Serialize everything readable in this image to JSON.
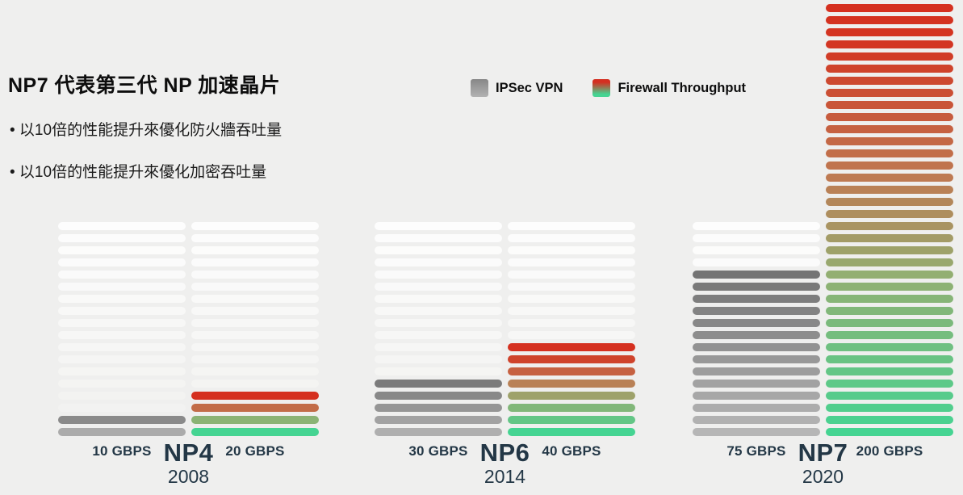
{
  "page": {
    "background": "#EFEFEE",
    "label_color": "#233746"
  },
  "header": {
    "title": "NP7 代表第三代 NP 加速晶片",
    "bullets": [
      "• 以10倍的性能提升來優化防火牆吞吐量",
      "• 以10倍的性能提升來優化加密吞吐量"
    ]
  },
  "legend": {
    "items": [
      {
        "label": "IPSec VPN",
        "swatch": "gray-gradient-swatch"
      },
      {
        "label": "Firewall Throughput",
        "swatch": "red-green-gradient-swatch"
      }
    ]
  },
  "chart_data": {
    "type": "bar",
    "unit": "GBPS",
    "categories": [
      "NP4",
      "NP6",
      "NP7"
    ],
    "series": [
      {
        "name": "IPSec VPN",
        "values": [
          10,
          30,
          75
        ]
      },
      {
        "name": "Firewall Throughput",
        "values": [
          20,
          40,
          200
        ]
      }
    ],
    "groups": [
      {
        "name": "NP4",
        "year": "2008",
        "ipsec_label": "10 GBPS",
        "ipsec_value": 10,
        "ipsec_stripes": 2,
        "firewall_label": "20 GBPS",
        "firewall_value": 20,
        "firewall_stripes": 4,
        "gray_top": "#8A8A8A",
        "gray_bottom": "#ABABAB"
      },
      {
        "name": "NP6",
        "year": "2014",
        "ipsec_label": "30 GBPS",
        "ipsec_value": 30,
        "ipsec_stripes": 5,
        "firewall_label": "40 GBPS",
        "firewall_value": 40,
        "firewall_stripes": 8,
        "gray_top": "#7B7B7B",
        "gray_bottom": "#AFAFAF"
      },
      {
        "name": "NP7",
        "year": "2020",
        "ipsec_label": "75 GBPS",
        "ipsec_value": 75,
        "ipsec_stripes": 14,
        "firewall_label": "200 GBPS",
        "firewall_value": 200,
        "firewall_stripes": 36,
        "gray_top": "#747474",
        "gray_bottom": "#B6B6B6"
      }
    ],
    "placeholder_rows": 18,
    "colors": {
      "firewall_ramp": [
        {
          "t": 0.0,
          "c": "#D5301F"
        },
        {
          "t": 0.08,
          "c": "#D33522"
        },
        {
          "t": 0.4,
          "c": "#BE7A52"
        },
        {
          "t": 0.63,
          "c": "#93AF72"
        },
        {
          "t": 1.0,
          "c": "#45D492"
        }
      ],
      "placeholder_top": "#FDFDFD",
      "placeholder_bottom": "#F1F1EF"
    },
    "layout": {
      "grid": false,
      "legend_position": "top-center",
      "baseline_y": 540
    }
  }
}
